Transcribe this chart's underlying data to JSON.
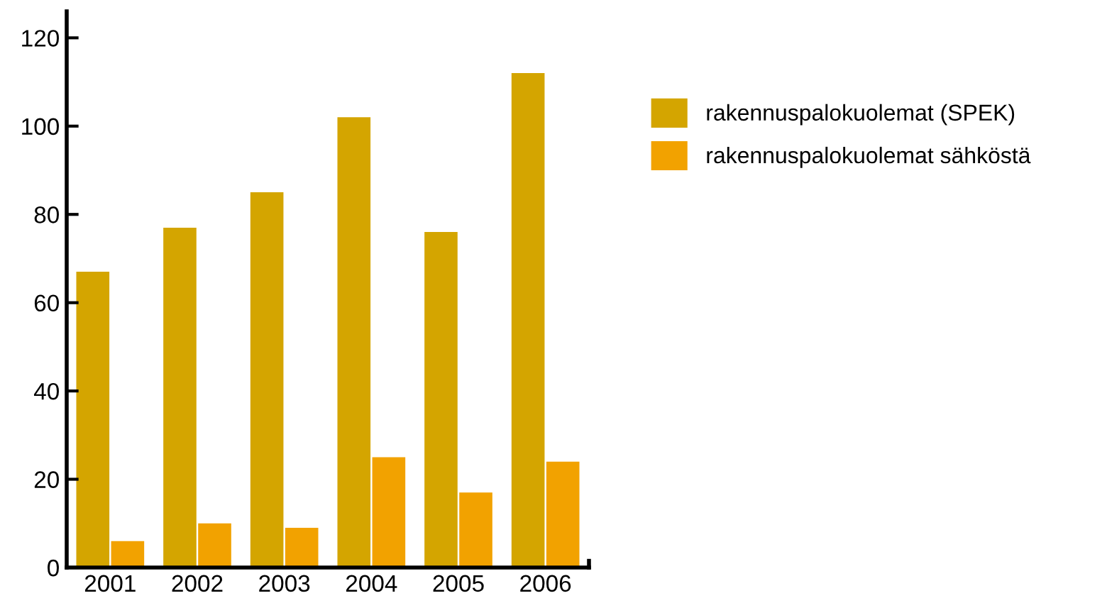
{
  "chart_data": {
    "type": "bar",
    "categories": [
      "2001",
      "2002",
      "2003",
      "2004",
      "2005",
      "2006"
    ],
    "series": [
      {
        "name": "rakennuspalokuolemat (SPEK)",
        "color": "#d4a500",
        "values": [
          67,
          77,
          85,
          102,
          76,
          112
        ]
      },
      {
        "name": "rakennuspalokuolemat sähköstä",
        "color": "#f2a200",
        "values": [
          6,
          10,
          9,
          25,
          17,
          24
        ]
      }
    ],
    "ylim": [
      0,
      126
    ],
    "yticks": [
      0,
      20,
      40,
      60,
      80,
      100,
      120
    ],
    "grid": false,
    "legend": "right"
  }
}
